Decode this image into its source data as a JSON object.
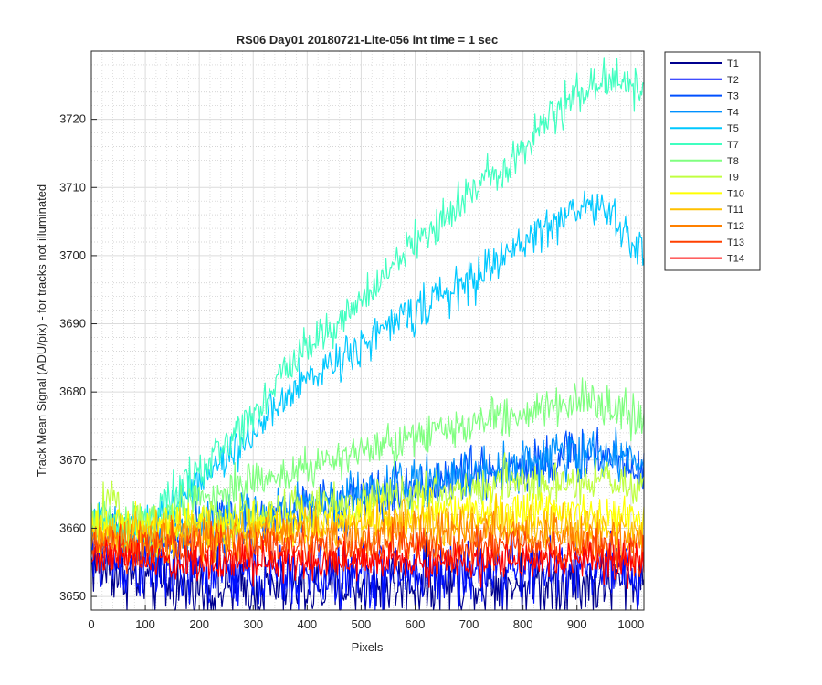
{
  "chart_data": {
    "type": "line",
    "title": "RS06 Day01 20180721-Lite-056 int time = 1 sec",
    "xlabel": "Pixels",
    "ylabel": "Track Mean Signal (ADU/pix) - for tracks not illuminated",
    "xlim": [
      0,
      1024
    ],
    "ylim": [
      3648,
      3730
    ],
    "xticks": [
      0,
      100,
      200,
      300,
      400,
      500,
      600,
      700,
      800,
      900,
      1000
    ],
    "yticks": [
      3650,
      3660,
      3670,
      3680,
      3690,
      3700,
      3710,
      3720
    ],
    "grid": "major solid, minor dotted",
    "legend_position": "outside top-right",
    "series": [
      {
        "name": "T1",
        "color": "#00008f",
        "noise": 2.5,
        "points": [
          [
            0,
            3655
          ],
          [
            100,
            3652
          ],
          [
            200,
            3651
          ],
          [
            400,
            3651
          ],
          [
            600,
            3652
          ],
          [
            800,
            3652
          ],
          [
            1024,
            3652
          ]
        ]
      },
      {
        "name": "T2",
        "color": "#0010ff",
        "noise": 2.5,
        "points": [
          [
            0,
            3656
          ],
          [
            100,
            3654
          ],
          [
            300,
            3653
          ],
          [
            500,
            3653
          ],
          [
            700,
            3654
          ],
          [
            900,
            3654
          ],
          [
            1024,
            3653
          ]
        ]
      },
      {
        "name": "T3",
        "color": "#0050ff",
        "noise": 2.0,
        "points": [
          [
            0,
            3658
          ],
          [
            100,
            3658
          ],
          [
            300,
            3661
          ],
          [
            500,
            3664
          ],
          [
            700,
            3668
          ],
          [
            850,
            3670
          ],
          [
            950,
            3671
          ],
          [
            1024,
            3669
          ]
        ]
      },
      {
        "name": "T4",
        "color": "#0090ff",
        "noise": 1.8,
        "points": [
          [
            0,
            3659
          ],
          [
            100,
            3659
          ],
          [
            300,
            3662
          ],
          [
            500,
            3665
          ],
          [
            700,
            3668
          ],
          [
            900,
            3671
          ],
          [
            1024,
            3670
          ]
        ]
      },
      {
        "name": "T5",
        "color": "#00c8ff",
        "noise": 1.5,
        "points": [
          [
            0,
            3662
          ],
          [
            60,
            3659
          ],
          [
            100,
            3660
          ],
          [
            200,
            3667
          ],
          [
            300,
            3674
          ],
          [
            400,
            3682
          ],
          [
            500,
            3687
          ],
          [
            600,
            3692
          ],
          [
            700,
            3696
          ],
          [
            800,
            3702
          ],
          [
            900,
            3707
          ],
          [
            950,
            3707
          ],
          [
            1024,
            3700
          ]
        ]
      },
      {
        "name": "T7",
        "color": "#40ffc0",
        "noise": 1.5,
        "points": [
          [
            0,
            3662
          ],
          [
            60,
            3659
          ],
          [
            100,
            3661
          ],
          [
            200,
            3668
          ],
          [
            300,
            3677
          ],
          [
            400,
            3687
          ],
          [
            500,
            3693
          ],
          [
            600,
            3702
          ],
          [
            700,
            3709
          ],
          [
            800,
            3716
          ],
          [
            900,
            3724
          ],
          [
            950,
            3726
          ],
          [
            1024,
            3725
          ]
        ]
      },
      {
        "name": "T8",
        "color": "#80ff80",
        "noise": 1.5,
        "points": [
          [
            0,
            3661
          ],
          [
            100,
            3661
          ],
          [
            200,
            3664
          ],
          [
            300,
            3667
          ],
          [
            400,
            3669
          ],
          [
            500,
            3671
          ],
          [
            600,
            3673
          ],
          [
            700,
            3675
          ],
          [
            800,
            3677
          ],
          [
            900,
            3679
          ],
          [
            1024,
            3676
          ]
        ]
      },
      {
        "name": "T9",
        "color": "#c0ff40",
        "noise": 1.6,
        "points": [
          [
            0,
            3660
          ],
          [
            40,
            3665
          ],
          [
            60,
            3661
          ],
          [
            100,
            3660
          ],
          [
            300,
            3662
          ],
          [
            500,
            3664
          ],
          [
            700,
            3666
          ],
          [
            900,
            3667
          ],
          [
            1024,
            3666
          ]
        ]
      },
      {
        "name": "T10",
        "color": "#ffff00",
        "noise": 1.6,
        "points": [
          [
            0,
            3660
          ],
          [
            200,
            3660
          ],
          [
            400,
            3661
          ],
          [
            600,
            3662
          ],
          [
            800,
            3663
          ],
          [
            1024,
            3661
          ]
        ]
      },
      {
        "name": "T11",
        "color": "#ffc000",
        "noise": 1.6,
        "points": [
          [
            0,
            3659
          ],
          [
            200,
            3659
          ],
          [
            400,
            3660
          ],
          [
            600,
            3661
          ],
          [
            800,
            3661
          ],
          [
            1024,
            3659
          ]
        ]
      },
      {
        "name": "T12",
        "color": "#ff8000",
        "noise": 1.6,
        "points": [
          [
            0,
            3658
          ],
          [
            200,
            3658
          ],
          [
            400,
            3659
          ],
          [
            600,
            3659
          ],
          [
            800,
            3659
          ],
          [
            1024,
            3658
          ]
        ]
      },
      {
        "name": "T13",
        "color": "#ff4000",
        "noise": 1.6,
        "points": [
          [
            0,
            3657
          ],
          [
            200,
            3657
          ],
          [
            400,
            3657
          ],
          [
            600,
            3657
          ],
          [
            800,
            3657
          ],
          [
            1024,
            3656
          ]
        ]
      },
      {
        "name": "T14",
        "color": "#ff0000",
        "noise": 1.4,
        "points": [
          [
            0,
            3656
          ],
          [
            200,
            3655
          ],
          [
            400,
            3655
          ],
          [
            600,
            3655
          ],
          [
            800,
            3655
          ],
          [
            1024,
            3655
          ]
        ]
      }
    ]
  }
}
